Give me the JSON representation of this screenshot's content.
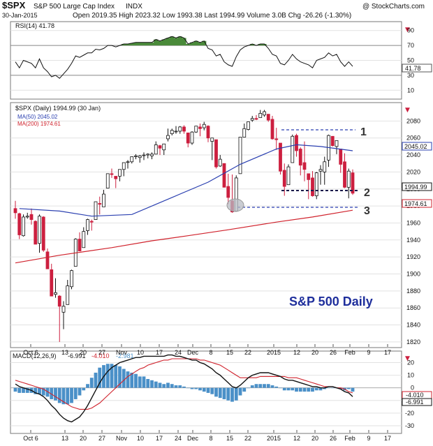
{
  "header": {
    "symbol": "$SPX",
    "name": "S&P 500 Large Cap Index",
    "exchange": "INDX",
    "watermark": "@ StockCharts.com",
    "date": "30-Jan-2015",
    "quote_line": "Open 2019.35  High 2023.32  Low 1993.38  Last 1994.99  Volume 3.0B  Chg -26.26 (-1.30%)",
    "down_arrow": "▼"
  },
  "rsi_panel": {
    "legend": "RSI(14) 41.78",
    "value_tag": "41.78",
    "ticks": [
      "90",
      "70",
      "50",
      "30",
      "10"
    ]
  },
  "price_panel": {
    "legend_main": "$SPX (Daily) 1994.99 (30 Jan)",
    "legend_ma50": "MA(50) 2045.02",
    "legend_ma200": "MA(200) 1974.61",
    "tag_ma50": "2045.02",
    "tag_last": "1994.99",
    "tag_ma200": "1974.61",
    "overlay_title": "S&P 500 Daily",
    "label_1": "1",
    "label_2": "2",
    "label_3": "3",
    "ticks": [
      "2080",
      "2060",
      "2040",
      "2020",
      "2000",
      "1980",
      "1960",
      "1940",
      "1920",
      "1900",
      "1880",
      "1860",
      "1840",
      "1820"
    ]
  },
  "macd_panel": {
    "legend_name": "MACD(12,26,9)",
    "legend_macd": "-6.991",
    "legend_signal": "-4.010",
    "legend_hist": "-2.981",
    "tag_signal": "-4.010",
    "tag_macd": "-6.991",
    "ticks": [
      "20",
      "10",
      "0",
      "-10",
      "-20",
      "-30"
    ]
  },
  "x_axis": [
    "Oct 6",
    "13",
    "20",
    "27",
    "Nov",
    "10",
    "17",
    "24",
    "Dec",
    "8",
    "15",
    "22",
    "2015",
    "12",
    "20",
    "26",
    "Feb",
    "9",
    "17"
  ],
  "colors": {
    "up": "#111111",
    "down": "#cc1f3f",
    "ma50": "#2a3fb0",
    "ma200": "#d0222c",
    "macd_hist": "#4a90c8",
    "panel_bg": "#ffffff",
    "title_blue": "#1f2f9c"
  },
  "chart_data": {
    "type": "candlestick",
    "title": "S&P 500 Daily",
    "ylim": [
      1815,
      2100
    ],
    "dates": [
      "Sep 30",
      "Oct 1",
      "Oct 2",
      "Oct 3",
      "Oct 6",
      "Oct 7",
      "Oct 8",
      "Oct 9",
      "Oct 10",
      "Oct 13",
      "Oct 14",
      "Oct 15",
      "Oct 16",
      "Oct 17",
      "Oct 20",
      "Oct 21",
      "Oct 22",
      "Oct 23",
      "Oct 24",
      "Oct 27",
      "Oct 28",
      "Oct 29",
      "Oct 30",
      "Oct 31",
      "Nov 3",
      "Nov 4",
      "Nov 5",
      "Nov 6",
      "Nov 7",
      "Nov 10",
      "Nov 11",
      "Nov 12",
      "Nov 13",
      "Nov 14",
      "Nov 17",
      "Nov 18",
      "Nov 19",
      "Nov 20",
      "Nov 21",
      "Nov 24",
      "Nov 25",
      "Nov 26",
      "Nov 28",
      "Dec 1",
      "Dec 2",
      "Dec 3",
      "Dec 4",
      "Dec 5",
      "Dec 8",
      "Dec 9",
      "Dec 10",
      "Dec 11",
      "Dec 12",
      "Dec 15",
      "Dec 16",
      "Dec 17",
      "Dec 18",
      "Dec 19",
      "Dec 22",
      "Dec 23",
      "Dec 24",
      "Dec 26",
      "Dec 29",
      "Dec 30",
      "Dec 31",
      "Jan 2",
      "Jan 5",
      "Jan 6",
      "Jan 7",
      "Jan 8",
      "Jan 9",
      "Jan 12",
      "Jan 13",
      "Jan 14",
      "Jan 15",
      "Jan 16",
      "Jan 20",
      "Jan 21",
      "Jan 22",
      "Jan 23",
      "Jan 26",
      "Jan 27",
      "Jan 28",
      "Jan 29",
      "Jan 30"
    ],
    "ohlc": [
      [
        1977,
        1986,
        1965,
        1972
      ],
      [
        1971,
        1972,
        1941,
        1946
      ],
      [
        1945,
        1970,
        1944,
        1967
      ],
      [
        1967,
        1972,
        1965,
        1968
      ],
      [
        1970,
        1977,
        1958,
        1964
      ],
      [
        1962,
        1963,
        1935,
        1935
      ],
      [
        1936,
        1970,
        1925,
        1968
      ],
      [
        1967,
        1968,
        1926,
        1928
      ],
      [
        1926,
        1930,
        1906,
        1906
      ],
      [
        1905,
        1912,
        1874,
        1874
      ],
      [
        1876,
        1895,
        1872,
        1878
      ],
      [
        1874,
        1875,
        1820,
        1862
      ],
      [
        1855,
        1868,
        1835,
        1862
      ],
      [
        1864,
        1893,
        1864,
        1886
      ],
      [
        1885,
        1905,
        1882,
        1904
      ],
      [
        1909,
        1942,
        1909,
        1941
      ],
      [
        1941,
        1949,
        1927,
        1927
      ],
      [
        1931,
        1955,
        1931,
        1950
      ],
      [
        1951,
        1965,
        1946,
        1964
      ],
      [
        1962,
        1964,
        1951,
        1961
      ],
      [
        1964,
        1985,
        1964,
        1985
      ],
      [
        1983,
        1991,
        1970,
        1982
      ],
      [
        1979,
        1999,
        1979,
        1994
      ],
      [
        2001,
        2018,
        2001,
        2018
      ],
      [
        2018,
        2024,
        2013,
        2017
      ],
      [
        2015,
        2015,
        2001,
        2012
      ],
      [
        2015,
        2023,
        2009,
        2023
      ],
      [
        2023,
        2031,
        2015,
        2031
      ],
      [
        2032,
        2034,
        2024,
        2032
      ],
      [
        2032,
        2038,
        2030,
        2038
      ],
      [
        2038,
        2041,
        2035,
        2039
      ],
      [
        2037,
        2040,
        2031,
        2039
      ],
      [
        2040,
        2043,
        2034,
        2040
      ],
      [
        2040,
        2042,
        2036,
        2041
      ],
      [
        2039,
        2043,
        2035,
        2041
      ],
      [
        2041,
        2056,
        2041,
        2052
      ],
      [
        2051,
        2052,
        2040,
        2048
      ],
      [
        2046,
        2053,
        2040,
        2053
      ],
      [
        2059,
        2071,
        2056,
        2063
      ],
      [
        2065,
        2071,
        2063,
        2069
      ],
      [
        2068,
        2074,
        2065,
        2068
      ],
      [
        2068,
        2074,
        2065,
        2073
      ],
      [
        2073,
        2075,
        2065,
        2068
      ],
      [
        2066,
        2066,
        2049,
        2054
      ],
      [
        2054,
        2068,
        2052,
        2067
      ],
      [
        2067,
        2074,
        2066,
        2074
      ],
      [
        2073,
        2077,
        2062,
        2071
      ],
      [
        2072,
        2079,
        2069,
        2076
      ],
      [
        2074,
        2075,
        2055,
        2060
      ],
      [
        2056,
        2060,
        2034,
        2060
      ],
      [
        2058,
        2058,
        2024,
        2026
      ],
      [
        2027,
        2040,
        2026,
        2035
      ],
      [
        2030,
        2030,
        2002,
        2002
      ],
      [
        2003,
        2018,
        1982,
        1990
      ],
      [
        1986,
        2017,
        1972,
        1973
      ],
      [
        1974,
        2016,
        1974,
        2013
      ],
      [
        2018,
        2061,
        2018,
        2061
      ],
      [
        2061,
        2077,
        2061,
        2071
      ],
      [
        2070,
        2079,
        2069,
        2079
      ],
      [
        2081,
        2086,
        2079,
        2083
      ],
      [
        2083,
        2087,
        2081,
        2082
      ],
      [
        2084,
        2093,
        2084,
        2089
      ],
      [
        2087,
        2093,
        2085,
        2091
      ],
      [
        2088,
        2088,
        2079,
        2081
      ],
      [
        2082,
        2086,
        2058,
        2059
      ],
      [
        2059,
        2072,
        2046,
        2058
      ],
      [
        2054,
        2054,
        2017,
        2021
      ],
      [
        2022,
        2030,
        1992,
        2003
      ],
      [
        2005,
        2029,
        2005,
        2026
      ],
      [
        2031,
        2064,
        2031,
        2062
      ],
      [
        2063,
        2065,
        2038,
        2045
      ],
      [
        2047,
        2049,
        2016,
        2028
      ],
      [
        2031,
        2056,
        2009,
        2023
      ],
      [
        2018,
        2018,
        1988,
        2011
      ],
      [
        2013,
        2021,
        1991,
        1992
      ],
      [
        1992,
        2020,
        1988,
        2019
      ],
      [
        2021,
        2028,
        2005,
        2023
      ],
      [
        2020,
        2038,
        2005,
        2032
      ],
      [
        2034,
        2064,
        2026,
        2063
      ],
      [
        2062,
        2062,
        2050,
        2051
      ],
      [
        2050,
        2057,
        2041,
        2057
      ],
      [
        2047,
        2047,
        2019,
        2029
      ],
      [
        2032,
        2042,
        2001,
        2002
      ],
      [
        2002,
        2024,
        1989,
        2021
      ],
      [
        2019,
        2023,
        1993,
        1995
      ]
    ],
    "ma50_x": [
      "Oct 1",
      "Oct 15",
      "Oct 27",
      "Nov 10",
      "Nov 24",
      "Dec 8",
      "Dec 18",
      "Jan 2",
      "Jan 9",
      "Jan 20",
      "Jan 30"
    ],
    "ma50": [
      1977,
      1974,
      1968,
      1970,
      1990,
      2008,
      2029,
      2047,
      2052,
      2050,
      2045
    ],
    "ma200_x": [
      "Sep 30",
      "Oct 15",
      "Nov 3",
      "Nov 17",
      "Dec 1",
      "Dec 15",
      "Jan 2",
      "Jan 15",
      "Jan 30"
    ],
    "ma200": [
      1913,
      1922,
      1931,
      1939,
      1945,
      1952,
      1961,
      1967,
      1975
    ],
    "rsi_ylim": [
      0,
      100
    ],
    "rsi": [
      48,
      40,
      50,
      48,
      46,
      40,
      52,
      40,
      35,
      28,
      30,
      26,
      32,
      38,
      46,
      56,
      54,
      57,
      60,
      60,
      65,
      64,
      66,
      70,
      70,
      68,
      70,
      72,
      72,
      73,
      74,
      74,
      74,
      74,
      74,
      78,
      76,
      78,
      80,
      82,
      80,
      82,
      80,
      72,
      74,
      76,
      74,
      76,
      66,
      64,
      56,
      58,
      48,
      44,
      42,
      55,
      64,
      68,
      70,
      72,
      70,
      72,
      72,
      66,
      58,
      56,
      46,
      44,
      50,
      58,
      52,
      48,
      46,
      44,
      40,
      50,
      52,
      54,
      60,
      56,
      58,
      48,
      42,
      48,
      42
    ],
    "macd_ylim": [
      -35,
      28
    ],
    "macd": [
      3,
      1,
      0,
      -1,
      -2,
      -4,
      -5,
      -7,
      -10,
      -14,
      -17,
      -21,
      -24,
      -26,
      -27,
      -25,
      -23,
      -19,
      -14,
      -8,
      -2,
      4,
      9,
      13,
      16,
      18,
      20,
      21,
      22,
      23,
      24,
      24,
      25,
      25,
      25,
      25,
      25,
      25,
      26,
      26,
      25,
      25,
      24,
      23,
      22,
      22,
      20,
      19,
      17,
      15,
      12,
      10,
      7,
      4,
      1,
      0,
      2,
      5,
      8,
      10,
      11,
      12,
      12,
      12,
      11,
      10,
      9,
      7,
      6,
      6,
      5,
      4,
      3,
      2,
      1,
      1,
      0,
      0,
      1,
      1,
      0,
      -1,
      -3,
      -4,
      -7
    ],
    "macd_signal": [
      6,
      5,
      4,
      3,
      2,
      1,
      0,
      -1,
      -3,
      -5,
      -7,
      -9,
      -11,
      -13,
      -15,
      -16,
      -17,
      -17,
      -17,
      -16,
      -14,
      -12,
      -9,
      -6,
      -3,
      0,
      3,
      6,
      9,
      11,
      13,
      15,
      16,
      18,
      19,
      20,
      21,
      22,
      22,
      23,
      23,
      23,
      23,
      23,
      23,
      23,
      22,
      22,
      21,
      20,
      19,
      18,
      16,
      14,
      12,
      10,
      8,
      8,
      8,
      8,
      8,
      9,
      9,
      9,
      9,
      9,
      9,
      9,
      8,
      8,
      8,
      7,
      6,
      5,
      4,
      3,
      2,
      1,
      1,
      1,
      0,
      0,
      -1,
      -3,
      -4
    ]
  }
}
